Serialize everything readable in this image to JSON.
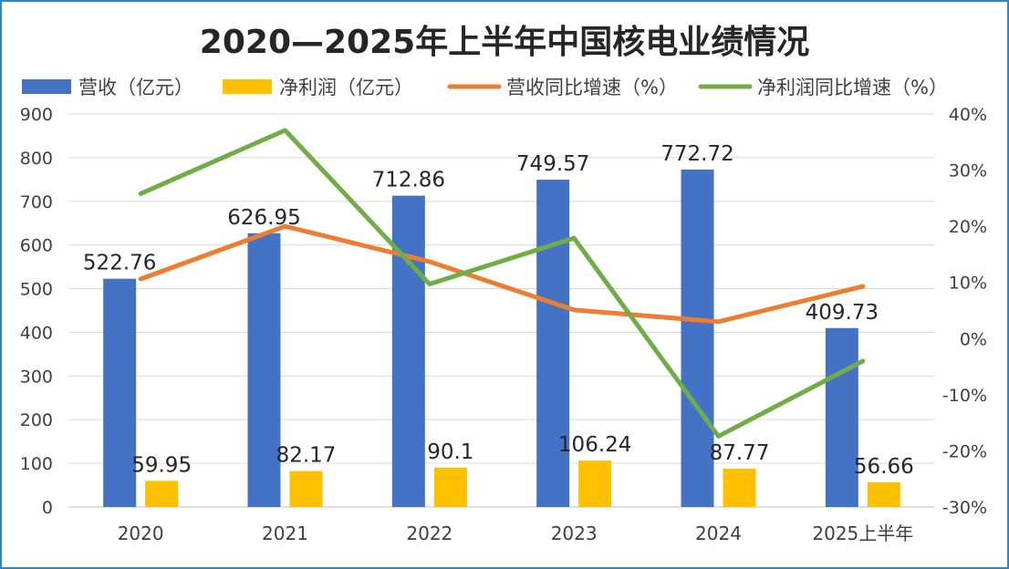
{
  "chart_data": {
    "type": "bar",
    "title": "2020—2025年上半年中国核电业绩情况",
    "categories": [
      "2020",
      "2021",
      "2022",
      "2023",
      "2024",
      "2025上半年"
    ],
    "series": [
      {
        "name": "营收（亿元）",
        "kind": "bar",
        "axis": "left",
        "color": "#4472c4",
        "values": [
          522.76,
          626.95,
          712.86,
          749.57,
          772.72,
          409.73
        ],
        "labels": [
          "522.76",
          "626.95",
          "712.86",
          "749.57",
          "772.72",
          "409.73"
        ]
      },
      {
        "name": "净利润（亿元）",
        "kind": "bar",
        "axis": "left",
        "color": "#ffc000",
        "values": [
          59.95,
          82.17,
          90.1,
          106.24,
          87.77,
          56.66
        ],
        "labels": [
          "59.95",
          "82.17",
          "90.1",
          "106.24",
          "87.77",
          "56.66"
        ]
      },
      {
        "name": "营收同比增速（%）",
        "kind": "line",
        "axis": "right",
        "color": "#ed7d31",
        "values": [
          10.6,
          20.0,
          13.7,
          5.1,
          3.0,
          9.3
        ]
      },
      {
        "name": "净利润同比增速（%）",
        "kind": "line",
        "axis": "right",
        "color": "#70ad47",
        "values": [
          25.8,
          37.1,
          9.7,
          17.9,
          -17.4,
          -4.0
        ]
      }
    ],
    "y_left": {
      "min": 0,
      "max": 900,
      "ticks": [
        "0",
        "100",
        "200",
        "300",
        "400",
        "500",
        "600",
        "700",
        "800",
        "900"
      ]
    },
    "y_right": {
      "min": -30,
      "max": 40,
      "ticks": [
        "-30%",
        "-20%",
        "-10%",
        "0%",
        "10%",
        "20%",
        "30%",
        "40%"
      ]
    },
    "grid": true,
    "legend": "top"
  }
}
